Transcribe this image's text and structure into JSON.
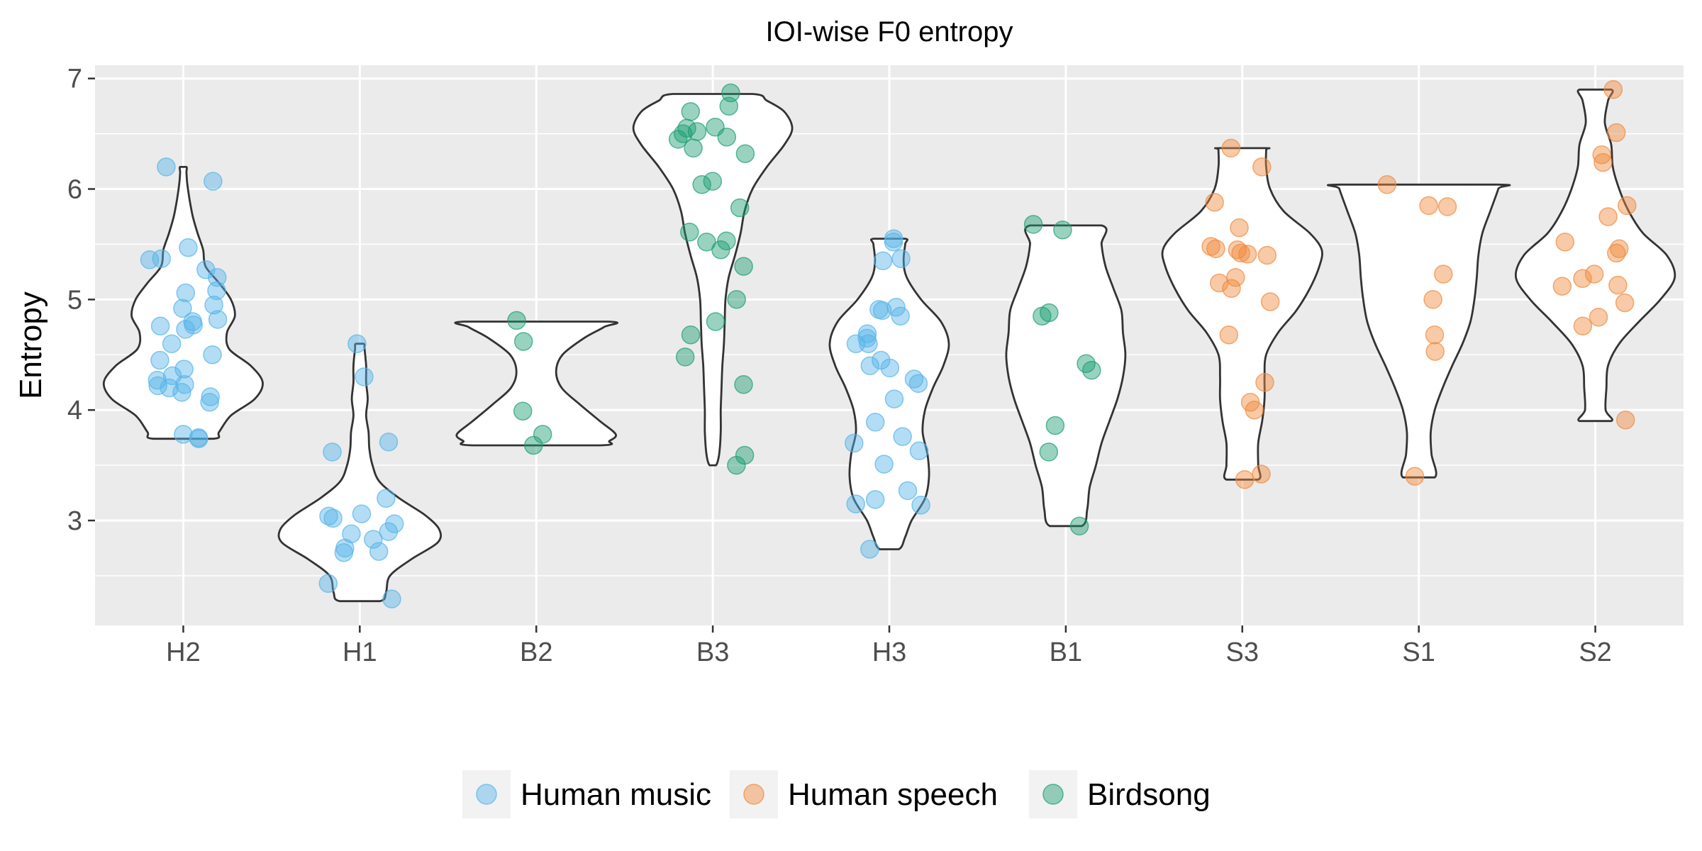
{
  "chart_data": {
    "type": "violin",
    "title": "IOI-wise F0 entropy",
    "xlabel": "",
    "ylabel": "Entropy",
    "ylim": [
      2.05,
      7.12
    ],
    "yticks": [
      3,
      4,
      5,
      6,
      7
    ],
    "categories": [
      "H2",
      "H1",
      "B2",
      "B3",
      "H3",
      "B1",
      "S3",
      "S1",
      "S2"
    ],
    "grid": true,
    "legend_position": "bottom",
    "series": [
      {
        "name": "Human music",
        "color": "#56B4E9"
      },
      {
        "name": "Human speech",
        "color": "#F08A3C"
      },
      {
        "name": "Birdsong",
        "color": "#1D9E73"
      }
    ],
    "groups": [
      {
        "category": "H2",
        "series": "Human music",
        "values": [
          6.2,
          6.07,
          5.47,
          5.37,
          5.36,
          5.27,
          5.2,
          5.08,
          5.06,
          4.95,
          4.92,
          4.82,
          4.8,
          4.77,
          4.76,
          4.73,
          4.6,
          4.5,
          4.45,
          4.37,
          4.31,
          4.27,
          4.23,
          4.22,
          4.2,
          4.16,
          4.12,
          4.07,
          3.78,
          3.75,
          3.74
        ],
        "violin": [
          [
            3.74,
            0.38
          ],
          [
            3.8,
            0.45
          ],
          [
            3.95,
            0.6
          ],
          [
            4.1,
            0.9
          ],
          [
            4.25,
            1.0
          ],
          [
            4.4,
            0.85
          ],
          [
            4.55,
            0.58
          ],
          [
            4.7,
            0.55
          ],
          [
            4.85,
            0.65
          ],
          [
            5.0,
            0.6
          ],
          [
            5.15,
            0.45
          ],
          [
            5.3,
            0.28
          ],
          [
            5.45,
            0.25
          ],
          [
            5.6,
            0.18
          ],
          [
            5.75,
            0.12
          ],
          [
            5.9,
            0.08
          ],
          [
            6.05,
            0.05
          ],
          [
            6.15,
            0.04
          ],
          [
            6.2,
            0.04
          ]
        ]
      },
      {
        "category": "H1",
        "series": "Human music",
        "values": [
          4.6,
          4.3,
          3.71,
          3.62,
          3.2,
          3.06,
          3.04,
          3.02,
          2.97,
          2.9,
          2.88,
          2.83,
          2.75,
          2.72,
          2.71,
          2.43,
          2.29
        ],
        "violin": [
          [
            2.27,
            0.25
          ],
          [
            2.35,
            0.33
          ],
          [
            2.5,
            0.38
          ],
          [
            2.65,
            0.65
          ],
          [
            2.8,
            0.98
          ],
          [
            2.92,
            1.0
          ],
          [
            3.05,
            0.82
          ],
          [
            3.2,
            0.5
          ],
          [
            3.35,
            0.25
          ],
          [
            3.5,
            0.16
          ],
          [
            3.65,
            0.12
          ],
          [
            3.8,
            0.11
          ],
          [
            3.95,
            0.08
          ],
          [
            4.1,
            0.1
          ],
          [
            4.25,
            0.08
          ],
          [
            4.4,
            0.08
          ],
          [
            4.55,
            0.06
          ],
          [
            4.6,
            0.05
          ]
        ]
      },
      {
        "category": "B2",
        "series": "Birdsong",
        "values": [
          4.81,
          4.62,
          3.99,
          3.78,
          3.68
        ],
        "violin": [
          [
            3.68,
            0.8
          ],
          [
            3.72,
            0.92
          ],
          [
            3.78,
            1.0
          ],
          [
            3.9,
            0.8
          ],
          [
            4.05,
            0.55
          ],
          [
            4.2,
            0.32
          ],
          [
            4.35,
            0.25
          ],
          [
            4.5,
            0.33
          ],
          [
            4.65,
            0.6
          ],
          [
            4.75,
            0.85
          ],
          [
            4.8,
            0.9
          ]
        ]
      },
      {
        "category": "B3",
        "series": "Birdsong",
        "values": [
          6.87,
          6.75,
          6.7,
          6.56,
          6.55,
          6.52,
          6.5,
          6.47,
          6.45,
          6.37,
          6.32,
          6.07,
          6.04,
          5.83,
          5.61,
          5.53,
          5.52,
          5.45,
          5.3,
          5.0,
          4.8,
          4.68,
          4.48,
          4.23,
          3.59,
          3.5
        ],
        "violin": [
          [
            3.5,
            0.04
          ],
          [
            3.6,
            0.08
          ],
          [
            3.8,
            0.1
          ],
          [
            4.0,
            0.1
          ],
          [
            4.2,
            0.11
          ],
          [
            4.4,
            0.12
          ],
          [
            4.6,
            0.14
          ],
          [
            4.8,
            0.15
          ],
          [
            5.0,
            0.16
          ],
          [
            5.2,
            0.2
          ],
          [
            5.4,
            0.28
          ],
          [
            5.6,
            0.35
          ],
          [
            5.8,
            0.4
          ],
          [
            6.0,
            0.5
          ],
          [
            6.2,
            0.68
          ],
          [
            6.4,
            0.9
          ],
          [
            6.55,
            1.0
          ],
          [
            6.7,
            0.9
          ],
          [
            6.8,
            0.68
          ],
          [
            6.86,
            0.5
          ]
        ]
      },
      {
        "category": "H3",
        "series": "Human music",
        "values": [
          5.55,
          5.52,
          5.37,
          5.35,
          4.93,
          4.91,
          4.9,
          4.85,
          4.69,
          4.65,
          4.6,
          4.6,
          4.45,
          4.4,
          4.38,
          4.28,
          4.24,
          4.1,
          3.89,
          3.76,
          3.7,
          3.63,
          3.51,
          3.27,
          3.19,
          3.15,
          3.14,
          2.74
        ],
        "violin": [
          [
            2.74,
            0.12
          ],
          [
            2.85,
            0.2
          ],
          [
            3.0,
            0.28
          ],
          [
            3.2,
            0.45
          ],
          [
            3.4,
            0.5
          ],
          [
            3.6,
            0.48
          ],
          [
            3.8,
            0.42
          ],
          [
            4.0,
            0.45
          ],
          [
            4.2,
            0.55
          ],
          [
            4.4,
            0.68
          ],
          [
            4.6,
            0.75
          ],
          [
            4.8,
            0.65
          ],
          [
            5.0,
            0.4
          ],
          [
            5.2,
            0.22
          ],
          [
            5.35,
            0.18
          ],
          [
            5.5,
            0.2
          ],
          [
            5.55,
            0.2
          ]
        ]
      },
      {
        "category": "B1",
        "series": "Birdsong",
        "values": [
          5.68,
          5.63,
          4.88,
          4.85,
          4.42,
          4.36,
          3.86,
          3.62,
          2.95
        ],
        "violin": [
          [
            2.95,
            0.2
          ],
          [
            3.1,
            0.27
          ],
          [
            3.3,
            0.3
          ],
          [
            3.5,
            0.38
          ],
          [
            3.7,
            0.45
          ],
          [
            3.9,
            0.55
          ],
          [
            4.1,
            0.65
          ],
          [
            4.3,
            0.72
          ],
          [
            4.5,
            0.75
          ],
          [
            4.7,
            0.72
          ],
          [
            4.9,
            0.7
          ],
          [
            5.1,
            0.6
          ],
          [
            5.3,
            0.5
          ],
          [
            5.5,
            0.45
          ],
          [
            5.67,
            0.45
          ]
        ]
      },
      {
        "category": "S3",
        "series": "Human speech",
        "values": [
          6.37,
          6.2,
          5.88,
          5.65,
          5.48,
          5.46,
          5.45,
          5.42,
          5.41,
          5.4,
          5.2,
          5.15,
          5.1,
          4.98,
          4.68,
          4.25,
          4.07,
          4.0,
          3.42,
          3.37
        ],
        "violin": [
          [
            3.37,
            0.2
          ],
          [
            3.5,
            0.2
          ],
          [
            3.7,
            0.2
          ],
          [
            3.9,
            0.25
          ],
          [
            4.1,
            0.28
          ],
          [
            4.3,
            0.28
          ],
          [
            4.5,
            0.3
          ],
          [
            4.7,
            0.45
          ],
          [
            4.9,
            0.68
          ],
          [
            5.1,
            0.85
          ],
          [
            5.3,
            0.97
          ],
          [
            5.45,
            1.0
          ],
          [
            5.6,
            0.85
          ],
          [
            5.8,
            0.52
          ],
          [
            6.0,
            0.35
          ],
          [
            6.2,
            0.3
          ],
          [
            6.35,
            0.3
          ],
          [
            6.37,
            0.3
          ]
        ]
      },
      {
        "category": "S1",
        "series": "Human speech",
        "values": [
          6.04,
          5.85,
          5.84,
          5.23,
          5.0,
          4.68,
          4.53,
          3.4
        ],
        "violin": [
          [
            3.39,
            0.2
          ],
          [
            3.6,
            0.16
          ],
          [
            3.8,
            0.15
          ],
          [
            4.0,
            0.2
          ],
          [
            4.2,
            0.3
          ],
          [
            4.4,
            0.42
          ],
          [
            4.6,
            0.55
          ],
          [
            4.8,
            0.65
          ],
          [
            5.0,
            0.7
          ],
          [
            5.2,
            0.73
          ],
          [
            5.4,
            0.75
          ],
          [
            5.6,
            0.8
          ],
          [
            5.8,
            0.9
          ],
          [
            6.0,
            1.0
          ],
          [
            6.04,
            1.0
          ]
        ]
      },
      {
        "category": "S2",
        "series": "Human speech",
        "values": [
          6.9,
          6.51,
          6.31,
          6.24,
          5.85,
          5.75,
          5.52,
          5.46,
          5.42,
          5.23,
          5.19,
          5.13,
          5.12,
          4.97,
          4.84,
          4.76,
          3.91
        ],
        "violin": [
          [
            3.9,
            0.2
          ],
          [
            4.0,
            0.13
          ],
          [
            4.2,
            0.14
          ],
          [
            4.4,
            0.16
          ],
          [
            4.6,
            0.3
          ],
          [
            4.8,
            0.55
          ],
          [
            5.0,
            0.82
          ],
          [
            5.2,
            1.0
          ],
          [
            5.4,
            0.9
          ],
          [
            5.6,
            0.6
          ],
          [
            5.8,
            0.42
          ],
          [
            6.0,
            0.3
          ],
          [
            6.2,
            0.22
          ],
          [
            6.4,
            0.2
          ],
          [
            6.6,
            0.12
          ],
          [
            6.8,
            0.16
          ],
          [
            6.9,
            0.2
          ]
        ]
      }
    ]
  }
}
